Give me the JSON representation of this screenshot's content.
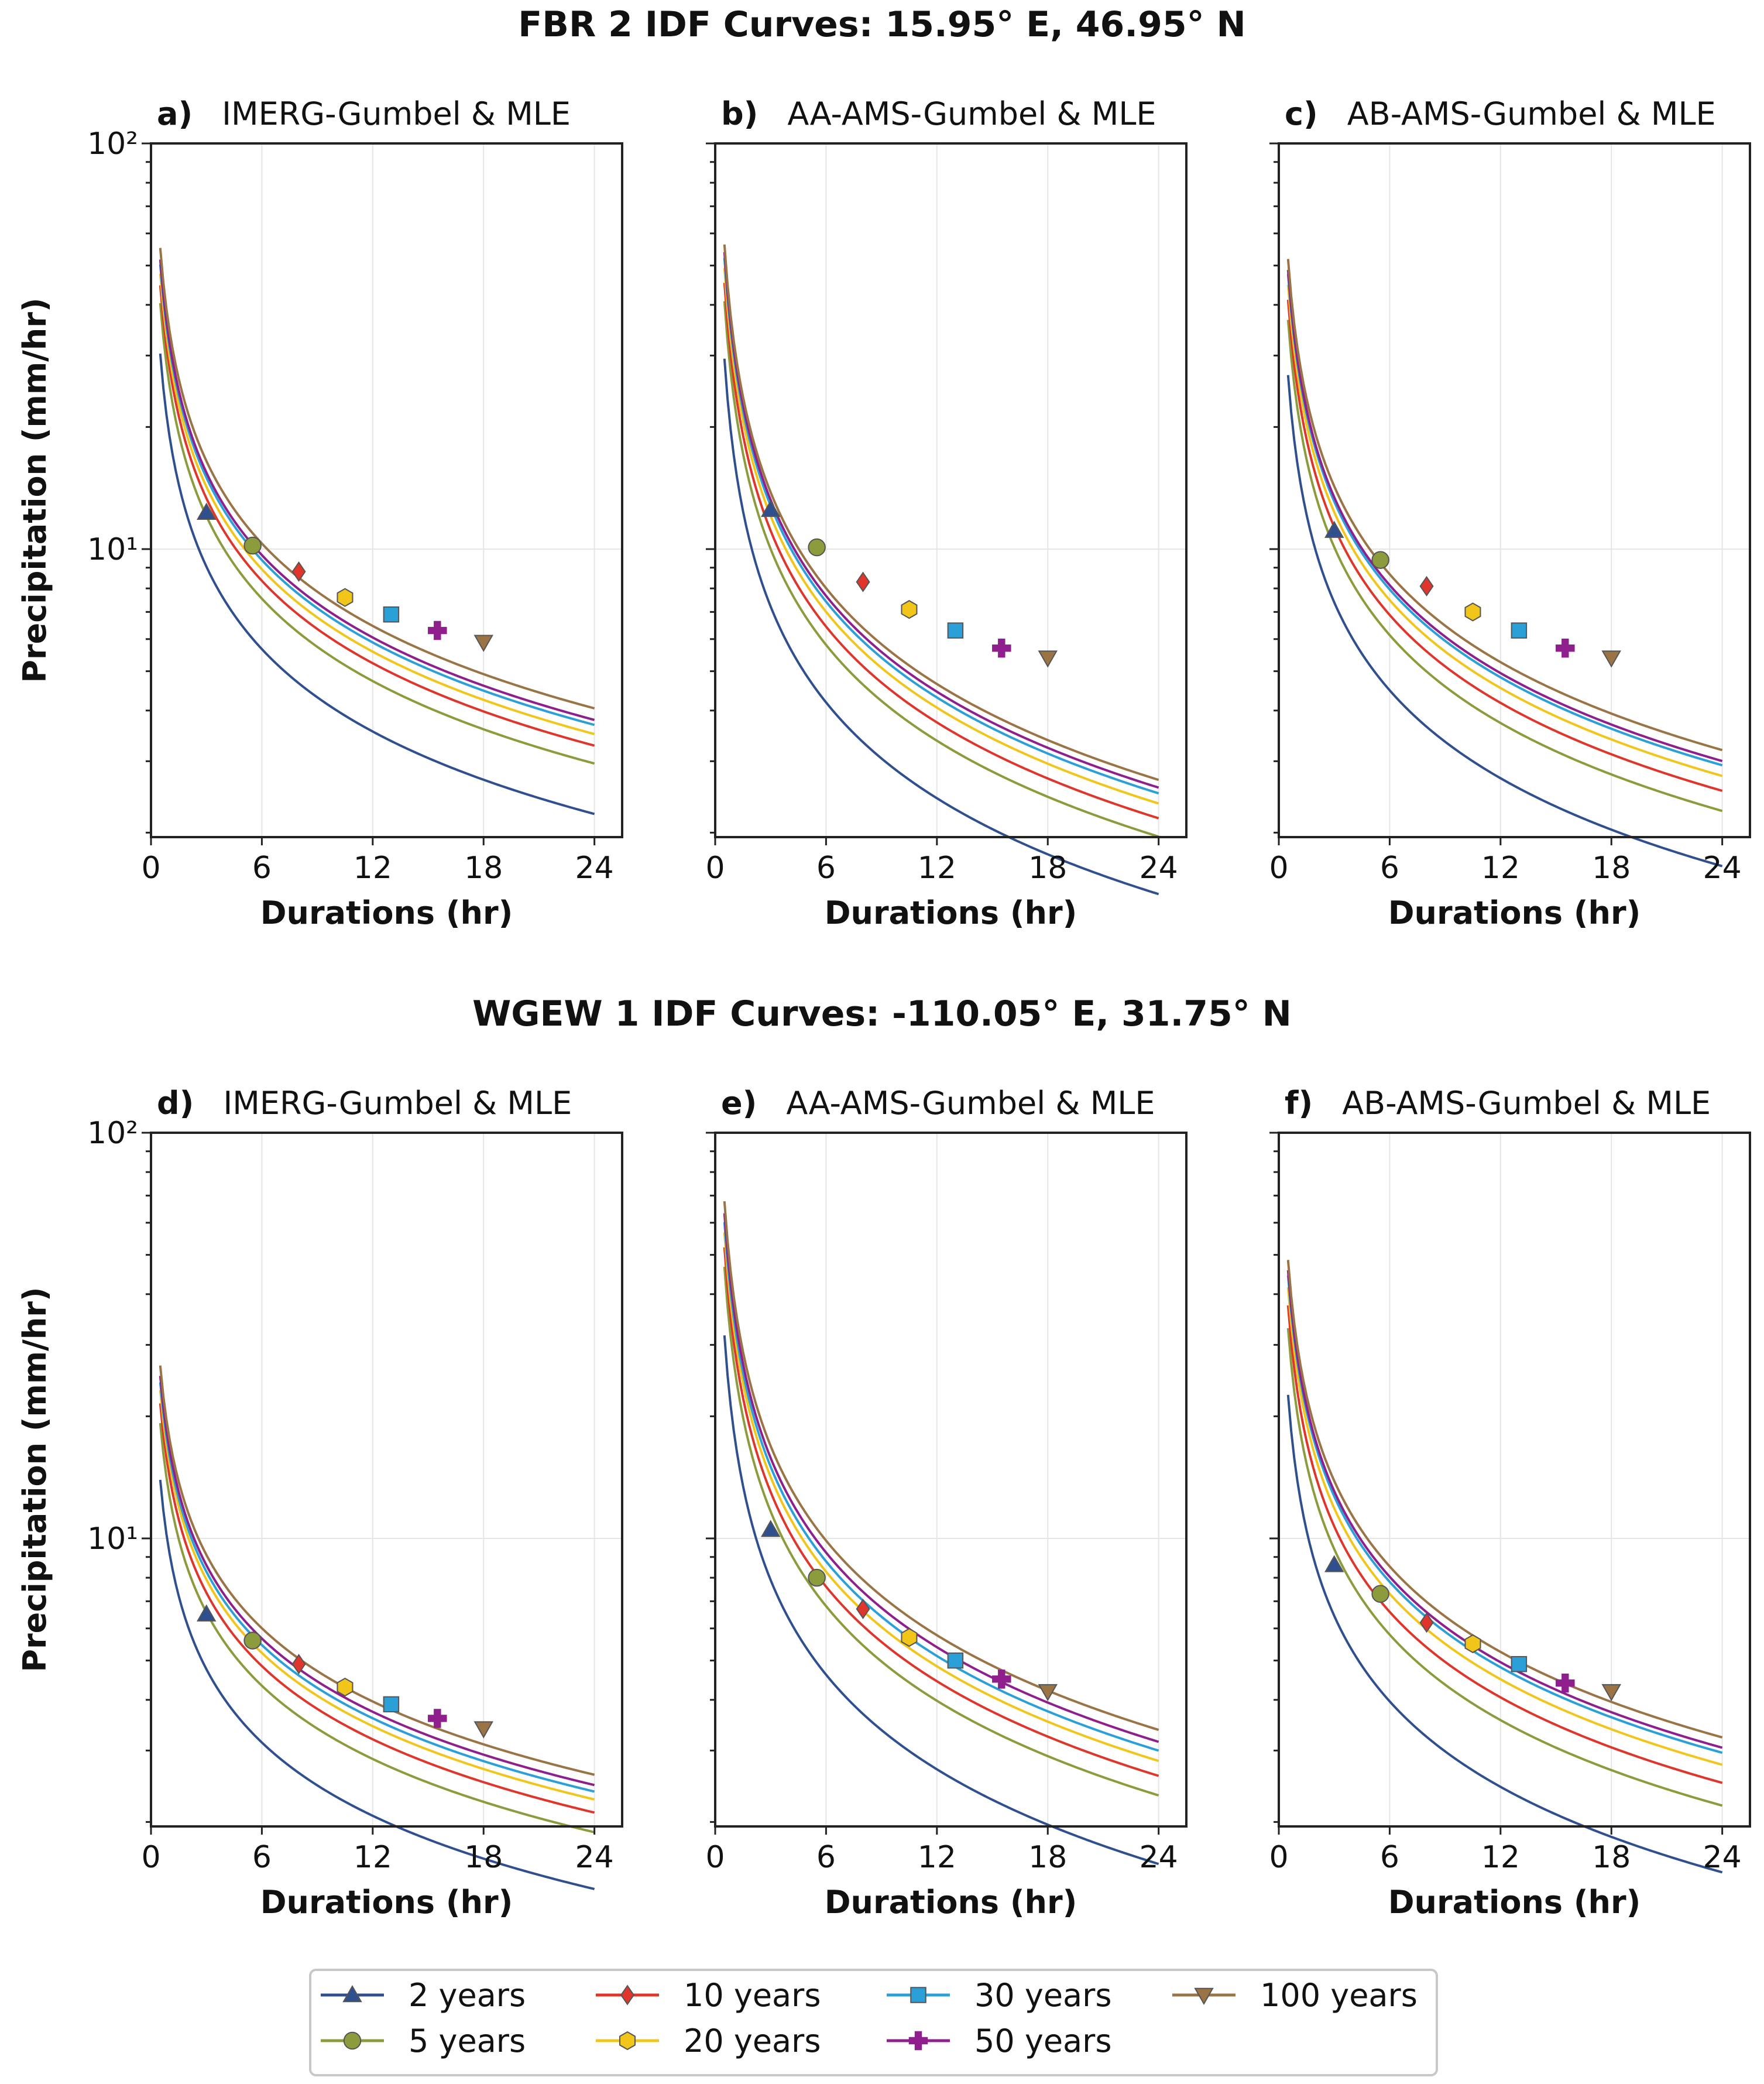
{
  "figure": {
    "sections": [
      {
        "title": "FBR 2 IDF Curves: 15.95° E, 46.95° N"
      },
      {
        "title": "WGEW 1 IDF Curves: -110.05° E, 31.75° N"
      }
    ]
  },
  "legend": {
    "items": [
      {
        "label": "2 years",
        "color": "#2f4f8f",
        "marker": "triangle-up"
      },
      {
        "label": "5 years",
        "color": "#8c9c3c",
        "marker": "circle"
      },
      {
        "label": "10 years",
        "color": "#e0352b",
        "marker": "diamond"
      },
      {
        "label": "20 years",
        "color": "#f2c51a",
        "marker": "hexagon"
      },
      {
        "label": "30 years",
        "color": "#2a9fd8",
        "marker": "square"
      },
      {
        "label": "50 years",
        "color": "#8e1f8c",
        "marker": "plus"
      },
      {
        "label": "100 years",
        "color": "#9a7445",
        "marker": "triangle-down"
      }
    ]
  },
  "chart_data": [
    {
      "type": "line",
      "letter": "a)",
      "name": "IMERG-Gumbel & MLE",
      "xlabel": "Durations (hr)",
      "ylabel": "Precipitation (mm/hr)",
      "xlim": [
        0,
        25.5
      ],
      "ylim": [
        1.95,
        100
      ],
      "yscale": "log",
      "xticks": [
        "0",
        "6",
        "12",
        "18",
        "24"
      ],
      "yticks": [
        "10¹",
        "10²"
      ],
      "x_range": [
        0.5,
        24
      ],
      "exponent": 0.675,
      "series": [
        {
          "name": "2 years",
          "value_at_1hr": 19.0
        },
        {
          "name": "5 years",
          "value_at_1hr": 25.3
        },
        {
          "name": "10 years",
          "value_at_1hr": 28.0
        },
        {
          "name": "20 years",
          "value_at_1hr": 29.9
        },
        {
          "name": "30 years",
          "value_at_1hr": 31.5
        },
        {
          "name": "50 years",
          "value_at_1hr": 32.4
        },
        {
          "name": "100 years",
          "value_at_1hr": 34.6
        }
      ],
      "markers": [
        {
          "series": "2 years",
          "x": 3,
          "y": 12.3
        },
        {
          "series": "5 years",
          "x": 5.5,
          "y": 10.2
        },
        {
          "series": "10 years",
          "x": 8,
          "y": 8.8
        },
        {
          "series": "20 years",
          "x": 10.5,
          "y": 7.6
        },
        {
          "series": "30 years",
          "x": 13,
          "y": 6.9
        },
        {
          "series": "50 years",
          "x": 15.5,
          "y": 6.3
        },
        {
          "series": "100 years",
          "x": 18,
          "y": 5.9
        }
      ]
    },
    {
      "type": "line",
      "letter": "b)",
      "name": "AA-AMS-Gumbel & MLE",
      "xlabel": "Durations (hr)",
      "ylabel": "",
      "xlim": [
        0,
        25.5
      ],
      "ylim": [
        1.95,
        100
      ],
      "yscale": "log",
      "xticks": [
        "0",
        "6",
        "12",
        "18",
        "24"
      ],
      "yticks": [],
      "x_range": [
        0.5,
        24
      ],
      "exponent": 0.785,
      "series": [
        {
          "name": "2 years",
          "value_at_1hr": 17.1
        },
        {
          "name": "5 years",
          "value_at_1hr": 23.7
        },
        {
          "name": "10 years",
          "value_at_1hr": 26.3
        },
        {
          "name": "20 years",
          "value_at_1hr": 28.6
        },
        {
          "name": "30 years",
          "value_at_1hr": 30.3
        },
        {
          "name": "50 years",
          "value_at_1hr": 31.3
        },
        {
          "name": "100 years",
          "value_at_1hr": 32.7
        }
      ],
      "markers": [
        {
          "series": "2 years",
          "x": 3,
          "y": 12.5
        },
        {
          "series": "5 years",
          "x": 5.5,
          "y": 10.1
        },
        {
          "series": "10 years",
          "x": 8,
          "y": 8.3
        },
        {
          "series": "20 years",
          "x": 10.5,
          "y": 7.1
        },
        {
          "series": "30 years",
          "x": 13,
          "y": 6.3
        },
        {
          "series": "50 years",
          "x": 15.5,
          "y": 5.7
        },
        {
          "series": "100 years",
          "x": 18,
          "y": 5.4
        }
      ]
    },
    {
      "type": "line",
      "letter": "c)",
      "name": "AB-AMS-Gumbel & MLE",
      "xlabel": "Durations (hr)",
      "ylabel": "",
      "xlim": [
        0,
        25.5
      ],
      "ylim": [
        1.95,
        100
      ],
      "yscale": "log",
      "xticks": [
        "0",
        "6",
        "12",
        "18",
        "24"
      ],
      "yticks": [],
      "x_range": [
        0.5,
        24
      ],
      "exponent": 0.72,
      "series": [
        {
          "name": "2 years",
          "value_at_1hr": 16.3
        },
        {
          "name": "5 years",
          "value_at_1hr": 22.3
        },
        {
          "name": "10 years",
          "value_at_1hr": 25.0
        },
        {
          "name": "20 years",
          "value_at_1hr": 27.2
        },
        {
          "name": "30 years",
          "value_at_1hr": 28.9
        },
        {
          "name": "50 years",
          "value_at_1hr": 29.6
        },
        {
          "name": "100 years",
          "value_at_1hr": 31.5
        }
      ],
      "markers": [
        {
          "series": "2 years",
          "x": 3,
          "y": 11.1
        },
        {
          "series": "5 years",
          "x": 5.5,
          "y": 9.4
        },
        {
          "series": "10 years",
          "x": 8,
          "y": 8.1
        },
        {
          "series": "20 years",
          "x": 10.5,
          "y": 7.0
        },
        {
          "series": "30 years",
          "x": 13,
          "y": 6.3
        },
        {
          "series": "50 years",
          "x": 15.5,
          "y": 5.7
        },
        {
          "series": "100 years",
          "x": 18,
          "y": 5.4
        }
      ]
    },
    {
      "type": "line",
      "letter": "d)",
      "name": "IMERG-Gumbel & MLE",
      "xlabel": "Durations (hr)",
      "ylabel": "Precipitation (mm/hr)",
      "xlim": [
        0,
        25.5
      ],
      "ylim": [
        1.95,
        100
      ],
      "yscale": "log",
      "xticks": [
        "0",
        "6",
        "12",
        "18",
        "24"
      ],
      "yticks": [
        "10¹",
        "10²"
      ],
      "x_range": [
        0.5,
        24
      ],
      "exponent": 0.6,
      "series": [
        {
          "name": "2 years",
          "value_at_1hr": 9.2
        },
        {
          "name": "5 years",
          "value_at_1hr": 12.7
        },
        {
          "name": "10 years",
          "value_at_1hr": 14.2
        },
        {
          "name": "20 years",
          "value_at_1hr": 15.3
        },
        {
          "name": "30 years",
          "value_at_1hr": 16.0
        },
        {
          "name": "50 years",
          "value_at_1hr": 16.6
        },
        {
          "name": "100 years",
          "value_at_1hr": 17.6
        }
      ],
      "markers": [
        {
          "series": "2 years",
          "x": 3,
          "y": 6.5
        },
        {
          "series": "5 years",
          "x": 5.5,
          "y": 5.6
        },
        {
          "series": "10 years",
          "x": 8,
          "y": 4.9
        },
        {
          "series": "20 years",
          "x": 10.5,
          "y": 4.3
        },
        {
          "series": "30 years",
          "x": 13,
          "y": 3.9
        },
        {
          "series": "50 years",
          "x": 15.5,
          "y": 3.6
        },
        {
          "series": "100 years",
          "x": 18,
          "y": 3.4
        }
      ]
    },
    {
      "type": "line",
      "letter": "e)",
      "name": "AA-AMS-Gumbel & MLE",
      "xlabel": "Durations (hr)",
      "ylabel": "",
      "xlim": [
        0,
        25.5
      ],
      "ylim": [
        1.95,
        100
      ],
      "yscale": "log",
      "xticks": [
        "0",
        "6",
        "12",
        "18",
        "24"
      ],
      "yticks": [],
      "x_range": [
        0.5,
        24
      ],
      "exponent": 0.775,
      "series": [
        {
          "name": "2 years",
          "value_at_1hr": 18.5
        },
        {
          "name": "5 years",
          "value_at_1hr": 27.3
        },
        {
          "name": "10 years",
          "value_at_1hr": 30.5
        },
        {
          "name": "20 years",
          "value_at_1hr": 33.2
        },
        {
          "name": "30 years",
          "value_at_1hr": 35.2
        },
        {
          "name": "50 years",
          "value_at_1hr": 37.0
        },
        {
          "name": "100 years",
          "value_at_1hr": 39.6
        }
      ],
      "markers": [
        {
          "series": "2 years",
          "x": 3,
          "y": 10.5
        },
        {
          "series": "5 years",
          "x": 5.5,
          "y": 8.0
        },
        {
          "series": "10 years",
          "x": 8,
          "y": 6.7
        },
        {
          "series": "20 years",
          "x": 10.5,
          "y": 5.7
        },
        {
          "series": "30 years",
          "x": 13,
          "y": 5.0
        },
        {
          "series": "50 years",
          "x": 15.5,
          "y": 4.5
        },
        {
          "series": "100 years",
          "x": 18,
          "y": 4.2
        }
      ]
    },
    {
      "type": "line",
      "letter": "f)",
      "name": "AB-AMS-Gumbel & MLE",
      "xlabel": "Durations (hr)",
      "ylabel": "",
      "xlim": [
        0,
        25.5
      ],
      "ylim": [
        1.95,
        100
      ],
      "yscale": "log",
      "xticks": [
        "0",
        "6",
        "12",
        "18",
        "24"
      ],
      "yticks": [],
      "x_range": [
        0.5,
        24
      ],
      "exponent": 0.7,
      "series": [
        {
          "name": "2 years",
          "value_at_1hr": 13.9
        },
        {
          "name": "5 years",
          "value_at_1hr": 20.3
        },
        {
          "name": "10 years",
          "value_at_1hr": 23.1
        },
        {
          "name": "20 years",
          "value_at_1hr": 25.6
        },
        {
          "name": "30 years",
          "value_at_1hr": 27.4
        },
        {
          "name": "50 years",
          "value_at_1hr": 28.2
        },
        {
          "name": "100 years",
          "value_at_1hr": 29.9
        }
      ],
      "markers": [
        {
          "series": "2 years",
          "x": 3,
          "y": 8.6
        },
        {
          "series": "5 years",
          "x": 5.5,
          "y": 7.3
        },
        {
          "series": "10 years",
          "x": 8,
          "y": 6.2
        },
        {
          "series": "20 years",
          "x": 10.5,
          "y": 5.5
        },
        {
          "series": "30 years",
          "x": 13,
          "y": 4.9
        },
        {
          "series": "50 years",
          "x": 15.5,
          "y": 4.4
        },
        {
          "series": "100 years",
          "x": 18,
          "y": 4.2
        }
      ]
    }
  ]
}
